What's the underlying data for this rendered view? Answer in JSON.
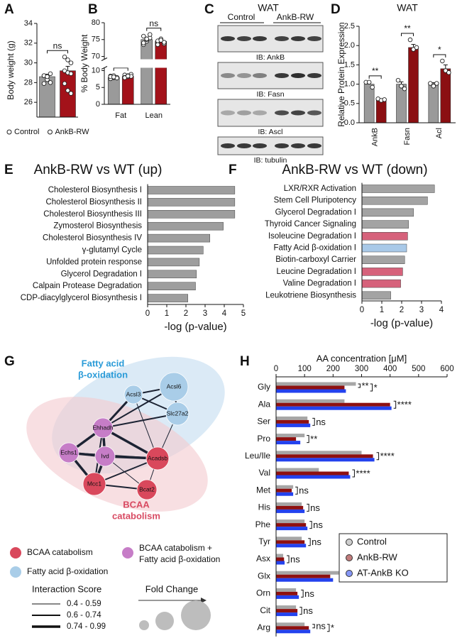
{
  "panel_labels": [
    "A",
    "B",
    "C",
    "D",
    "E",
    "F",
    "G",
    "H"
  ],
  "chart_data": [
    {
      "type": "bar",
      "ylabel": "Body weight (g)",
      "ylim": [
        24.5,
        34
      ],
      "yticks": [
        26,
        28,
        30,
        32,
        34
      ],
      "legend": "bottom",
      "annotations": [
        "ns"
      ],
      "series": [
        {
          "name": "Control",
          "color": "#9a9a9a",
          "values": [
            28.6
          ],
          "errors": [
            0.25
          ],
          "points": [
            [
              28.7,
              28.6,
              28.9,
              28.7,
              28.3,
              28.0,
              27.9,
              28.6
            ]
          ]
        },
        {
          "name": "AnkB-RW",
          "color": "#a3121a",
          "values": [
            29.2
          ],
          "errors": [
            0.45
          ],
          "points": [
            [
              30.6,
              30.3,
              30.0,
              29.2,
              29.0,
              28.9,
              27.9,
              27.2,
              26.9
            ]
          ]
        }
      ]
    },
    {
      "type": "bar",
      "ylabel": "% Body Weight",
      "ylim": [
        0,
        80
      ],
      "axis_break": [
        10,
        70
      ],
      "yticks": [
        0,
        5,
        10,
        70,
        75,
        80
      ],
      "categories": [
        "Fat",
        "Lean"
      ],
      "annotations": [
        "ns",
        "ns"
      ],
      "series": [
        {
          "color": "#9a9a9a",
          "values": [
            8.0,
            75.0
          ],
          "errors": [
            0.25,
            0.6
          ],
          "points": [
            [
              8.4,
              7.9,
              8.0,
              7.6,
              8.5,
              7.8,
              8.2,
              8.1
            ],
            [
              76,
              74.5,
              75.5,
              73.5,
              75,
              76.5,
              74,
              75.2
            ]
          ]
        },
        {
          "color": "#a3121a",
          "values": [
            8.3,
            74.5
          ],
          "errors": [
            0.2,
            0.5
          ],
          "points": [
            [
              8.7,
              8.2,
              8.9,
              8.0,
              8.5,
              8.3,
              7.9,
              8.4
            ],
            [
              74,
              75,
              73.8,
              74.6,
              75.2,
              74.2,
              73.5,
              74.8
            ]
          ]
        }
      ]
    },
    {
      "type": "bar",
      "title": "WAT",
      "ylabel": "Relative Protein Expression",
      "ylim": [
        0,
        2.5
      ],
      "yticks": [
        {
          "value": 0,
          "label": "0.0"
        },
        {
          "value": 0.5,
          "label": "0.5"
        },
        {
          "value": 1,
          "label": "1.0"
        },
        {
          "value": 1.5,
          "label": "1.5"
        },
        {
          "value": 2,
          "label": "2.0"
        },
        {
          "value": 2.5,
          "label": "2.5"
        }
      ],
      "categories": [
        "AnkB",
        "Fasn",
        "Acl"
      ],
      "annotations": [
        "**",
        "**",
        "*"
      ],
      "series": [
        {
          "color": "#9a9a9a",
          "values": [
            1.0,
            1.0,
            1.0
          ],
          "errors": [
            0.04,
            0.06,
            0.04
          ],
          "points": [
            [
              1.05,
              1.05,
              0.92
            ],
            [
              1.1,
              0.95,
              0.88
            ],
            [
              1.02,
              0.95,
              1.02
            ]
          ]
        },
        {
          "color": "#8b0f12",
          "values": [
            0.6,
            1.95,
            1.4
          ],
          "errors": [
            0.02,
            0.08,
            0.1
          ],
          "points": [
            [
              0.62,
              0.58,
              0.6
            ],
            [
              2.15,
              1.9,
              1.95
            ],
            [
              1.6,
              1.35,
              1.3
            ]
          ]
        }
      ]
    },
    {
      "type": "hbar",
      "title": "AnkB-RW vs WT (up)",
      "xlabel": "-log (p-value)",
      "color": "#9e9e9e",
      "categories": [
        "Cholesterol Biosynthesis I",
        "Cholesterol Biosynthesis II",
        "Cholesterol Biosynthesis III",
        "Zymosterol Biosynthesis",
        "Cholesterol Biosynthesis IV",
        "γ-glutamyl Cycle",
        "Unfolded protein response",
        "Glycerol Degradation I",
        "Calpain Protease Degradation",
        "CDP-diacylglycerol Biosynthesis I"
      ],
      "values": [
        4.55,
        4.55,
        4.55,
        3.95,
        3.25,
        2.9,
        2.7,
        2.55,
        2.5,
        2.1
      ],
      "xlim": [
        0,
        5
      ],
      "xticks": [
        0,
        1,
        2,
        3,
        4,
        5
      ]
    },
    {
      "type": "hbar",
      "title": "AnkB-RW vs WT (down)",
      "xlabel": "-log (p-value)",
      "categories": [
        "LXR/RXR Activation",
        "Stem Cell Pluripotency",
        "Glycerol Degradation I",
        "Thyroid Cancer Signaling",
        "Isoleucine Degradation I",
        "Fatty Acid β-oxidation I",
        "Biotin-carboxyl Carrier",
        "Leucine Degradation I",
        "Valine Degradation I",
        "Leukotriene Biosynthesis"
      ],
      "values": [
        3.65,
        3.3,
        2.6,
        2.35,
        2.3,
        2.25,
        2.15,
        2.05,
        1.95,
        1.45
      ],
      "colors": [
        "#a3a3a3",
        "#a3a3a3",
        "#a3a3a3",
        "#a3a3a3",
        "#d6627b",
        "#a9c9e8",
        "#a3a3a3",
        "#d6627b",
        "#d6627b",
        "#a3a3a3"
      ],
      "xlim": [
        0,
        4
      ],
      "xticks": [
        0,
        1,
        2,
        3,
        4
      ]
    },
    {
      "type": "hbar_grouped",
      "title": "AA concentration [μM]",
      "legend": "lower right",
      "categories": [
        "Gly",
        "Ala",
        "Ser",
        "Pro",
        "Leu/Ile",
        "Val",
        "Met",
        "His",
        "Phe",
        "Tyr",
        "Asx",
        "Glx",
        "Orn",
        "Cit",
        "Arg"
      ],
      "series": [
        {
          "name": "Control",
          "color": "#a6a6a6",
          "values": [
            280,
            240,
            110,
            100,
            300,
            150,
            60,
            90,
            100,
            90,
            25,
            220,
            70,
            70,
            100
          ]
        },
        {
          "name": "AnkB-RW",
          "color": "#8e1010",
          "values": [
            240,
            400,
            115,
            70,
            340,
            255,
            55,
            95,
            105,
            100,
            28,
            190,
            75,
            75,
            115
          ]
        },
        {
          "name": "AT-AnkB KO",
          "color": "#2342ee",
          "values": [
            245,
            405,
            120,
            85,
            345,
            260,
            60,
            100,
            110,
            105,
            30,
            200,
            80,
            75,
            120
          ]
        }
      ],
      "sig_rw": [
        "**",
        "****",
        "ns",
        "**",
        "****",
        "****",
        "ns",
        "ns",
        "ns",
        "ns",
        "ns",
        "**",
        "ns",
        "ns",
        "ns"
      ],
      "sig_ko": [
        "*",
        null,
        null,
        null,
        null,
        null,
        null,
        null,
        null,
        null,
        null,
        "*",
        null,
        null,
        "*"
      ],
      "xlim": [
        0,
        600
      ],
      "xticks": [
        0,
        100,
        200,
        300,
        400,
        500,
        600
      ]
    }
  ],
  "blot": {
    "title": "WAT",
    "groups": [
      "Control",
      "AnkB-RW"
    ],
    "labels": [
      "IB: AnkB",
      "IB: Fasn",
      "IB: Ascl",
      "IB: tubulin"
    ]
  },
  "network": {
    "nodes": [
      "Acsl6",
      "Acsl3",
      "Slc27a2",
      "Ehhadh",
      "Echs1",
      "Ivd",
      "Acadsb",
      "Mcc1",
      "Bcat2"
    ],
    "clusters": [
      [
        "Fatty acid",
        "β-oxidation"
      ],
      [
        "BCAA",
        "catabolism"
      ]
    ],
    "legend_items": [
      "BCAA catabolism",
      "Fatty acid β-oxidation",
      [
        "BCAA catabolism +",
        "Fatty acid β-oxidation"
      ]
    ],
    "interaction_title": "Interaction Score",
    "interaction_ranges": [
      "0.4 - 0.59",
      "0.6 - 0.74",
      "0.74 - 0.99"
    ],
    "fold_change": "Fold Change"
  }
}
